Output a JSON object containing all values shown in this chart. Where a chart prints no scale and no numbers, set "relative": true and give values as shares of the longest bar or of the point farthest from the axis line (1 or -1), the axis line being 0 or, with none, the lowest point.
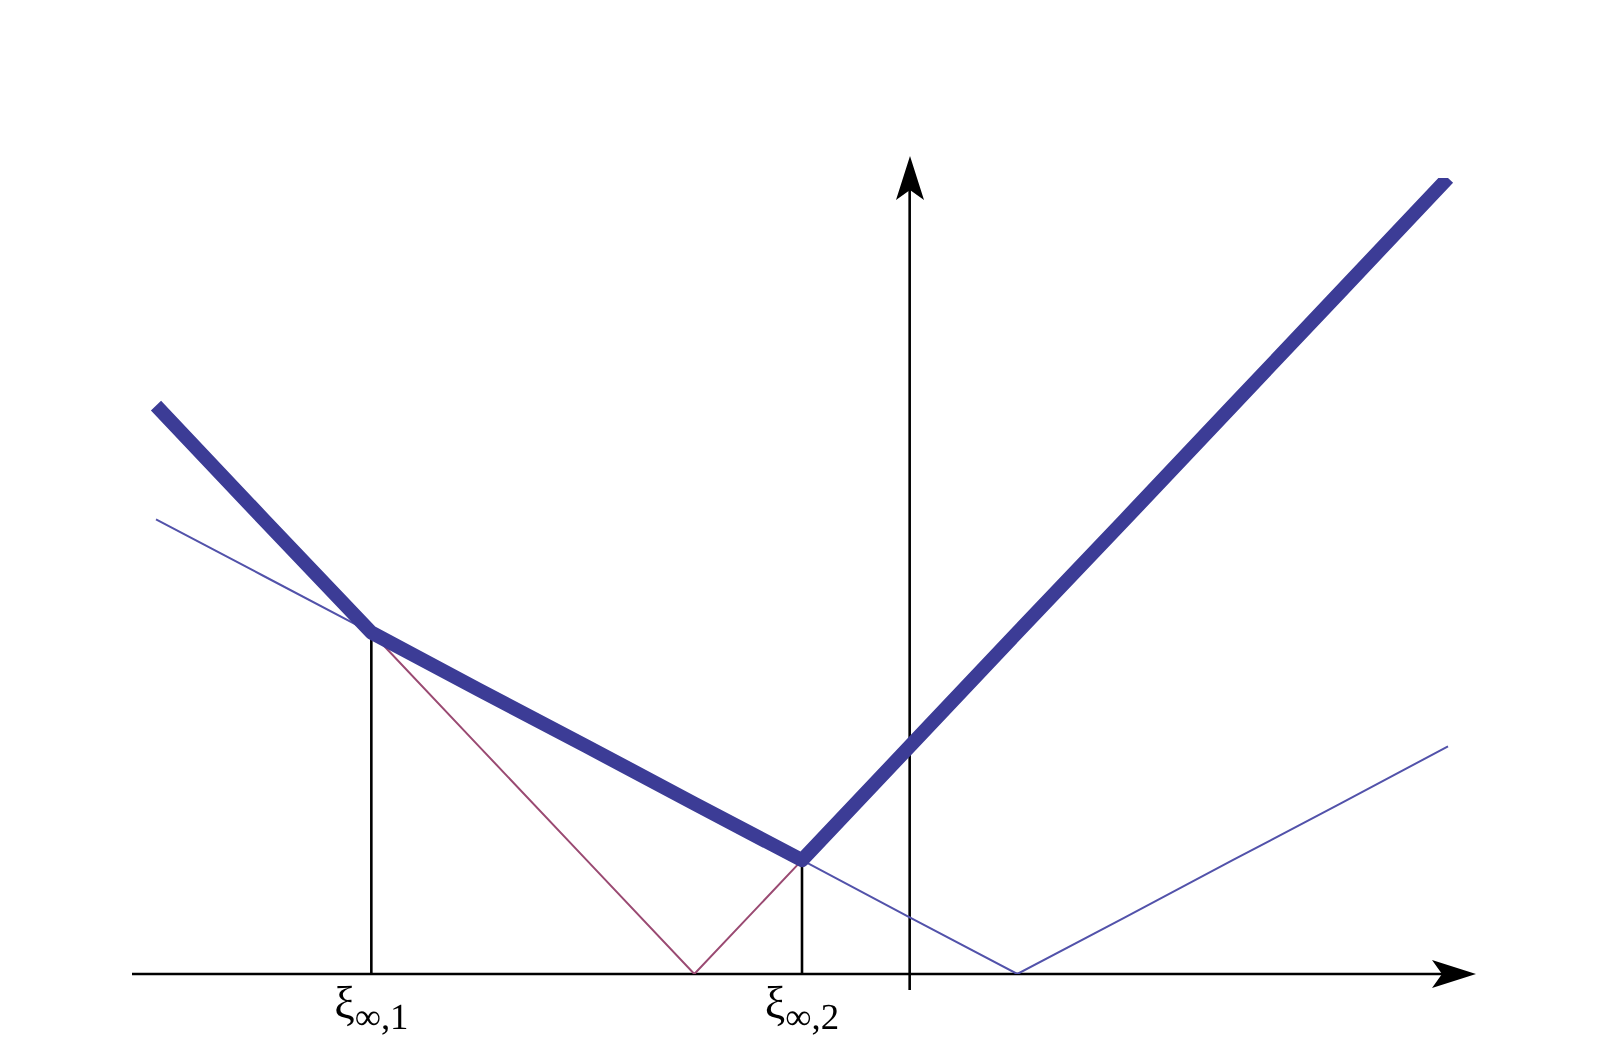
{
  "chart_data": {
    "type": "line",
    "relative": true,
    "categories": [
      null,
      null,
      "ξ$_{∞,1}$",
      null,
      null,
      null,
      "ξ$_{∞,2}$",
      null,
      null,
      null,
      null,
      null,
      null
    ],
    "series": [
      {
        "color": "#3c3c96",
        "values": [
          0.714,
          0.571,
          0.429,
          0.357,
          0.286,
          0.214,
          0.143,
          0.286,
          0.429,
          0.571,
          0.714,
          0.857,
          1
        ]
      },
      {
        "color": "#5252aa",
        "values": [
          0.571,
          0.5,
          0.429,
          0.357,
          0.286,
          0.214,
          0.143,
          0.071,
          0,
          0.071,
          0.143,
          0.214,
          0.286
        ]
      },
      {
        "color": "#9a4a72",
        "values": [
          null,
          null,
          0.429,
          0.286,
          0.143,
          0,
          0.143,
          null,
          null,
          null,
          null,
          null,
          null
        ]
      }
    ],
    "ref_lines": [
      {
        "axis": "x",
        "value": "ξ$_{∞,1}$",
        "color": "#000000"
      },
      {
        "axis": "x",
        "value": "ξ$_{∞,2}$",
        "color": "#000000"
      }
    ]
  }
}
